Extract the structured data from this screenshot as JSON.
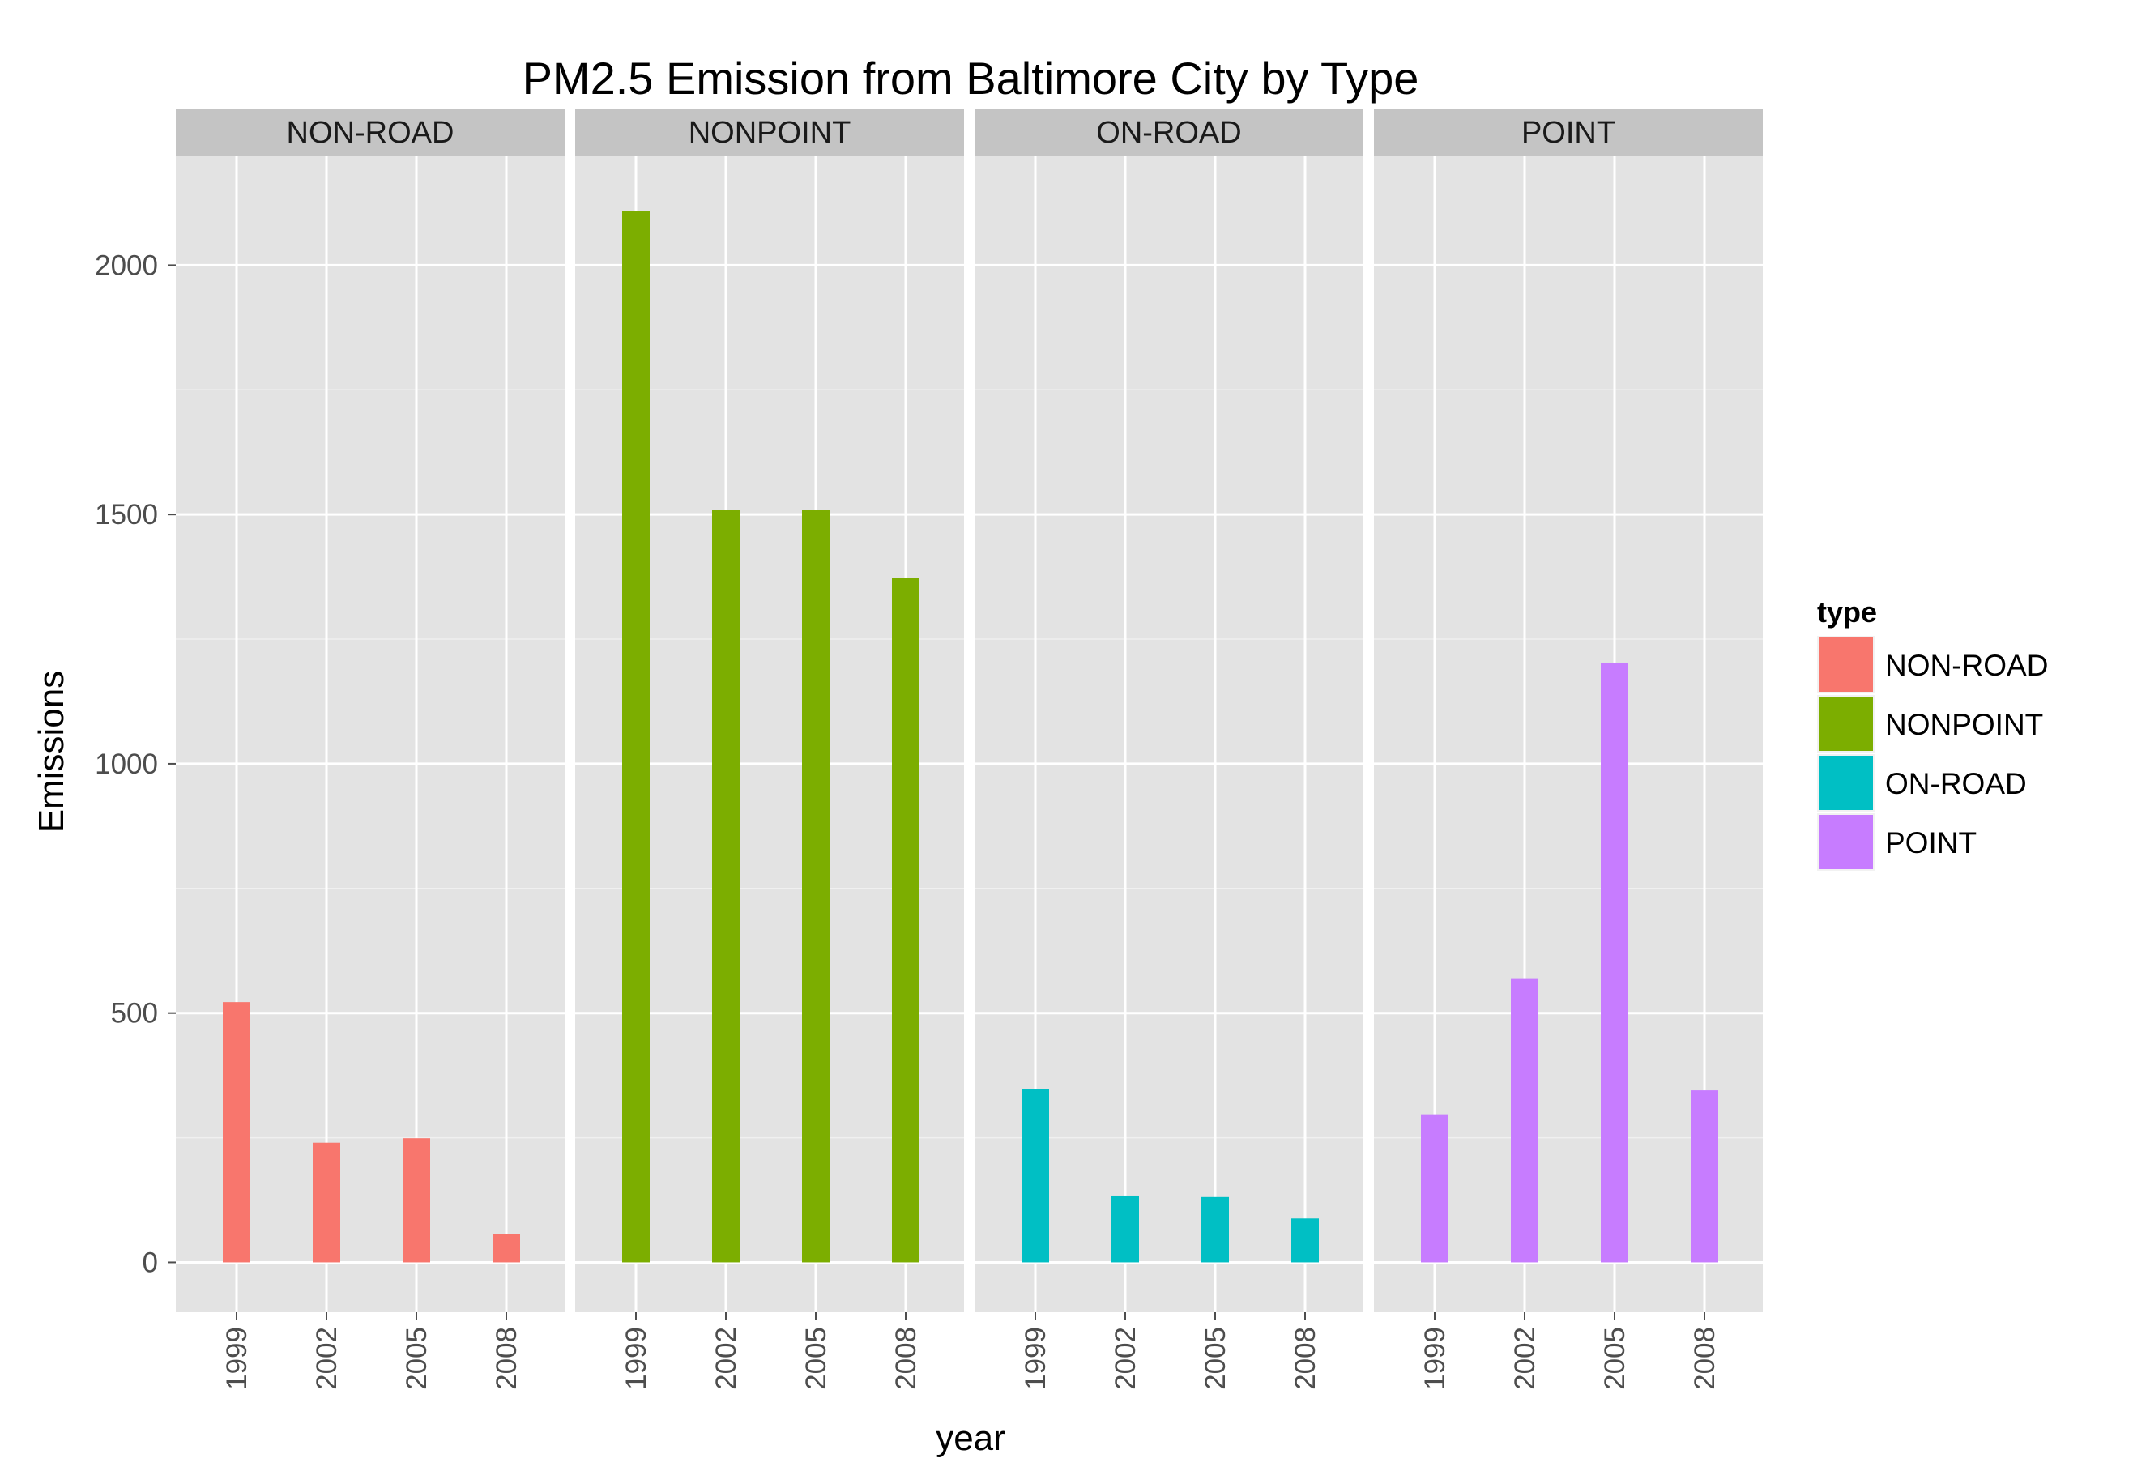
{
  "chart_data": {
    "type": "bar",
    "title": "PM2.5 Emission from Baltimore City by Type",
    "xlabel": "year",
    "ylabel": "Emissions",
    "categories": [
      "1999",
      "2002",
      "2005",
      "2008"
    ],
    "ylim": [
      -100,
      2220
    ],
    "yticks": [
      0,
      500,
      1000,
      1500,
      2000
    ],
    "grid": true,
    "legend": {
      "title": "type",
      "placement": "right"
    },
    "series": [
      {
        "name": "NON-ROAD",
        "color": "#F8766D",
        "values": [
          522,
          240,
          249,
          56
        ]
      },
      {
        "name": "NONPOINT",
        "color": "#7CAE00",
        "values": [
          2108,
          1510,
          1510,
          1373
        ]
      },
      {
        "name": "ON-ROAD",
        "color": "#00BFC4",
        "values": [
          347,
          134,
          131,
          88
        ]
      },
      {
        "name": "POINT",
        "color": "#C77CFF",
        "values": [
          297,
          570,
          1203,
          345
        ]
      }
    ]
  }
}
